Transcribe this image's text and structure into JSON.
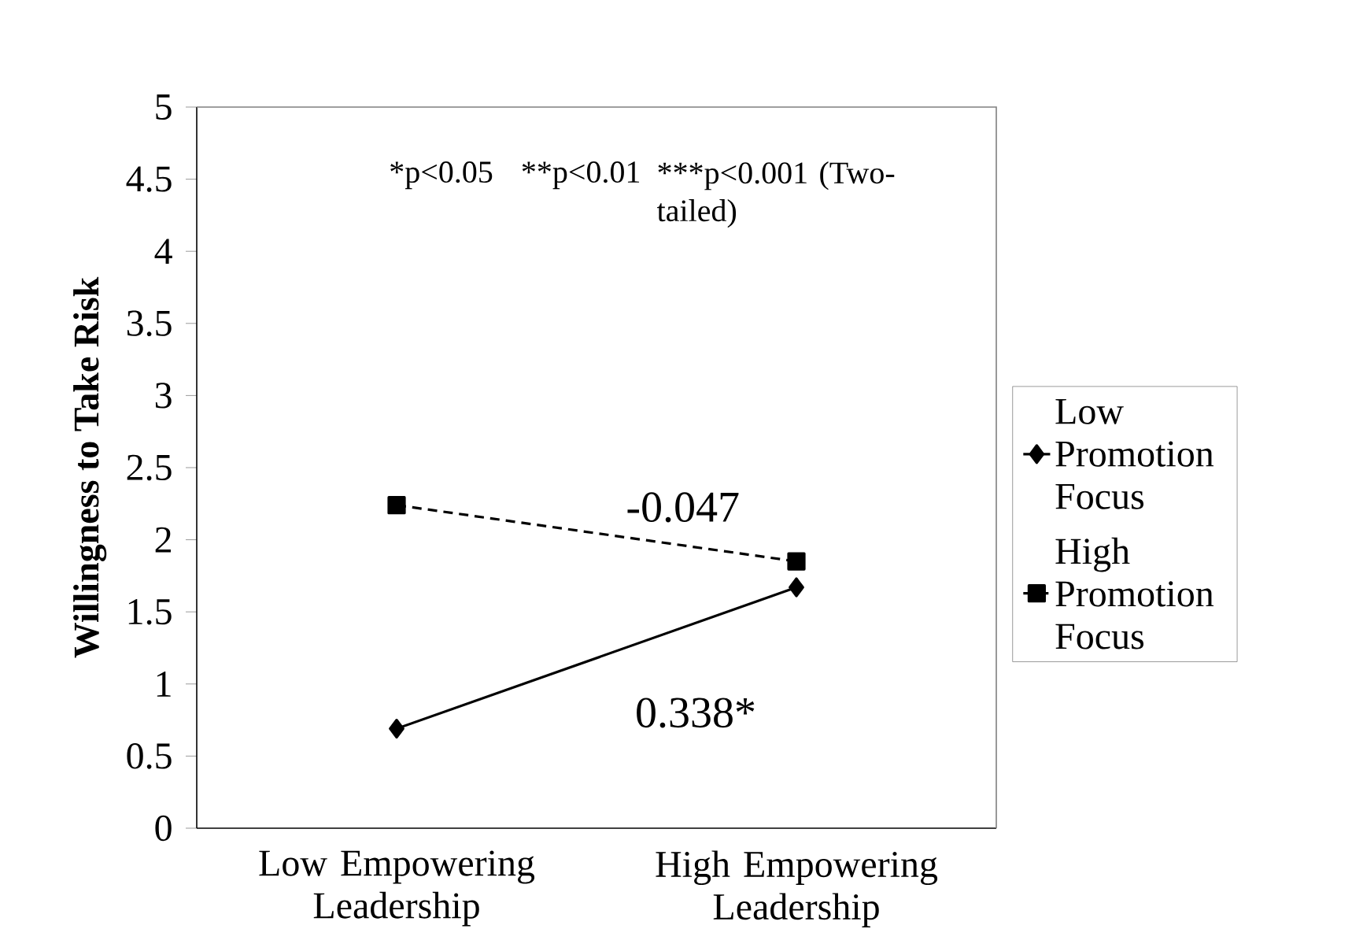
{
  "chart_data": {
    "type": "line",
    "categories": [
      "Low Empowering Leadership",
      "High Empowering Leadership"
    ],
    "series": [
      {
        "name": "Low Promotion Focus",
        "color": "#000000",
        "values": [
          0.69,
          1.67
        ],
        "marker": "diamond",
        "line_style": "solid"
      },
      {
        "name": "High Promotion Focus",
        "color": "#000000",
        "values": [
          2.24,
          1.85
        ],
        "marker": "square",
        "line_style": "dashed"
      }
    ],
    "ylabel": "Willingness to Take Risk",
    "ylim": [
      0,
      5
    ],
    "yticks": [
      0,
      0.5,
      1,
      1.5,
      2,
      2.5,
      3,
      3.5,
      4,
      4.5,
      5
    ],
    "annotations": [
      "*p<0.05",
      "**p<0.01",
      "***p<0.001 (Two-tailed)",
      "-0.047",
      "0.338*"
    ],
    "legend": "right",
    "grid": false
  }
}
